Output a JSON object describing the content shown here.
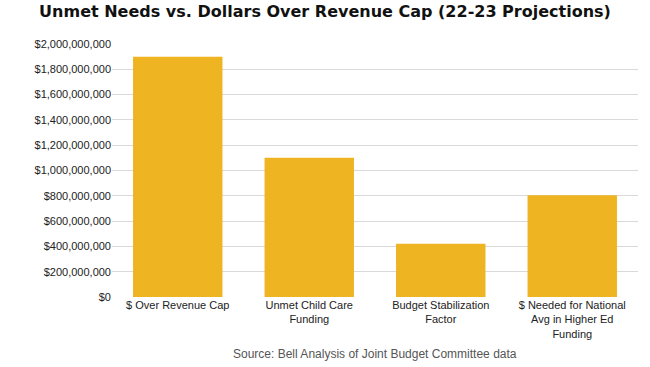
{
  "chart_data": {
    "type": "bar",
    "title": "Unmet Needs vs. Dollars Over Revenue Cap (22-23 Projections)",
    "categories": [
      "$ Over Revenue Cap",
      "Unmet Child Care Funding",
      "Budget Stabilization Factor",
      "$ Needed for National Avg in Higher Ed Funding"
    ],
    "values": [
      1900000000,
      1100000000,
      420000000,
      805000000
    ],
    "color": "#eeb422",
    "ylim": [
      0,
      2000000000
    ],
    "yticks": [
      {
        "value": 0,
        "label": "$0"
      },
      {
        "value": 200000000,
        "label": "$200,000,000"
      },
      {
        "value": 400000000,
        "label": "$400,000,000"
      },
      {
        "value": 600000000,
        "label": "$600,000,000"
      },
      {
        "value": 800000000,
        "label": "$800,000,000"
      },
      {
        "value": 1000000000,
        "label": "$1,000,000,000"
      },
      {
        "value": 1200000000,
        "label": "$1,200,000,000"
      },
      {
        "value": 1400000000,
        "label": "$1,400,000,000"
      },
      {
        "value": 1600000000,
        "label": "$1,600,000,000"
      },
      {
        "value": 1800000000,
        "label": "$1,800,000,000"
      },
      {
        "value": 2000000000,
        "label": "$2,000,000,000"
      }
    ],
    "grid": true,
    "annotation": "Source: Bell Analysis of Joint Budget Committee data"
  }
}
